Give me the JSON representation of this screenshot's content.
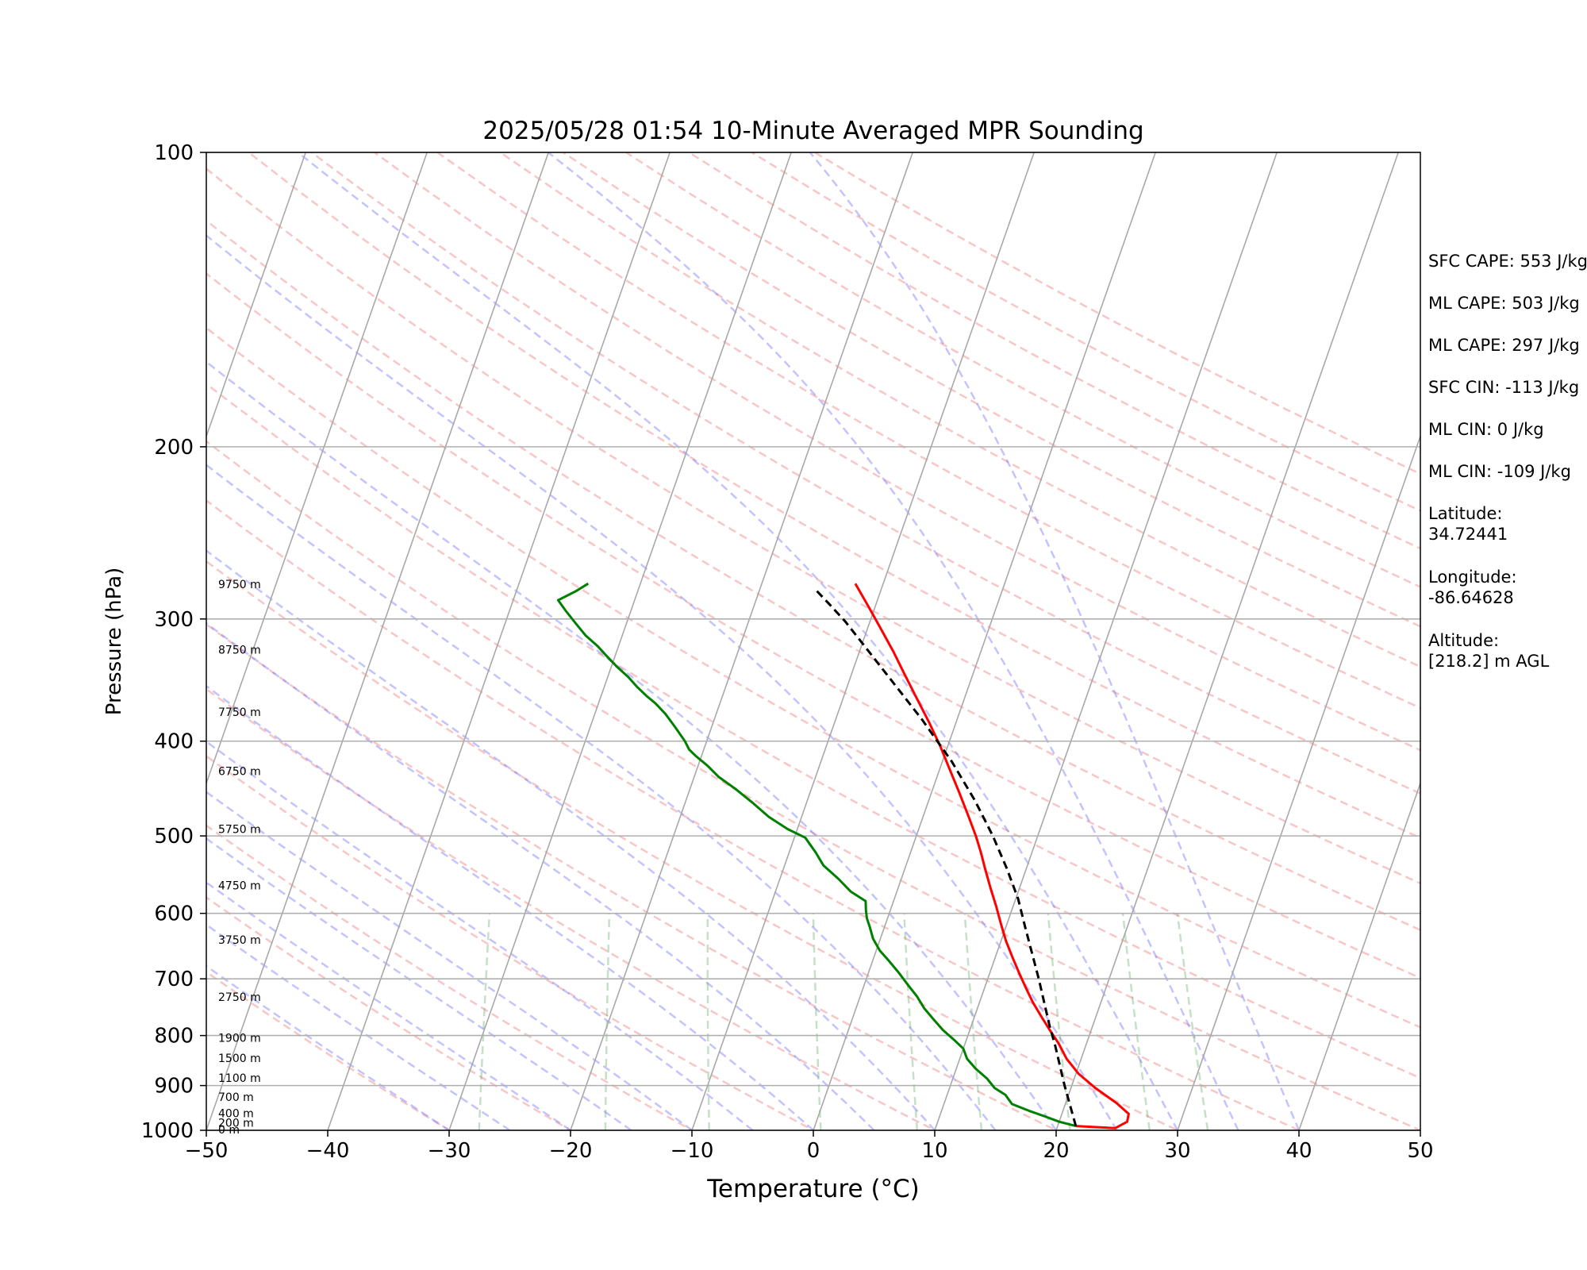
{
  "chart_data": {
    "type": "line",
    "title": "2025/05/28 01:54 10-Minute Averaged MPR Sounding",
    "xlabel": "Temperature (°C)",
    "ylabel": "Pressure (hPa)",
    "xlim": [
      -50,
      50
    ],
    "ylim": [
      1000,
      100
    ],
    "y_scale": "log",
    "skew": "skew-T",
    "xticks": [
      -50,
      -40,
      -30,
      -20,
      -10,
      0,
      10,
      20,
      30,
      40,
      50
    ],
    "xtick_labels": [
      "−50",
      "−40",
      "−30",
      "−20",
      "−10",
      "0",
      "10",
      "20",
      "30",
      "40",
      "50"
    ],
    "yticks": [
      100,
      200,
      300,
      400,
      500,
      600,
      700,
      800,
      900,
      1000
    ],
    "ytick_labels": [
      "100",
      "200",
      "300",
      "400",
      "500",
      "600",
      "700",
      "800",
      "900",
      "1000"
    ],
    "grid": "horizontal at pressure ticks",
    "height_labels": [
      {
        "p": 1000,
        "label": "0 m"
      },
      {
        "p": 984,
        "label": "200 m"
      },
      {
        "p": 962,
        "label": "400 m"
      },
      {
        "p": 926,
        "label": "700 m"
      },
      {
        "p": 886,
        "label": "1100 m"
      },
      {
        "p": 845,
        "label": "1500 m"
      },
      {
        "p": 806,
        "label": "1900 m"
      },
      {
        "p": 732,
        "label": "2750 m"
      },
      {
        "p": 640,
        "label": "3750 m"
      },
      {
        "p": 563,
        "label": "4750 m"
      },
      {
        "p": 493,
        "label": "5750 m"
      },
      {
        "p": 430,
        "label": "6750 m"
      },
      {
        "p": 374,
        "label": "7750 m"
      },
      {
        "p": 323,
        "label": "8750 m"
      },
      {
        "p": 277,
        "label": "9750 m"
      }
    ],
    "series": [
      {
        "color": "#ff0000",
        "points": [
          [
            21.5,
            990
          ],
          [
            24.8,
            995
          ],
          [
            25.6,
            980
          ],
          [
            25.5,
            962
          ],
          [
            24.2,
            938
          ],
          [
            22.0,
            905
          ],
          [
            20.2,
            875
          ],
          [
            18.8,
            845
          ],
          [
            17.7,
            815
          ],
          [
            16.6,
            790
          ],
          [
            15.5,
            765
          ],
          [
            14.4,
            740
          ],
          [
            13.4,
            715
          ],
          [
            12.4,
            690
          ],
          [
            11.4,
            665
          ],
          [
            10.4,
            640
          ],
          [
            9.5,
            615
          ],
          [
            8.6,
            590
          ],
          [
            7.6,
            565
          ],
          [
            6.6,
            540
          ],
          [
            5.8,
            520
          ],
          [
            4.9,
            500
          ],
          [
            3.6,
            475
          ],
          [
            2.2,
            450
          ],
          [
            0.8,
            427
          ],
          [
            -0.6,
            405
          ],
          [
            -2.2,
            383
          ],
          [
            -3.9,
            362
          ],
          [
            -5.6,
            342
          ],
          [
            -7.2,
            324
          ],
          [
            -9.0,
            306
          ],
          [
            -10.7,
            290
          ],
          [
            -12.3,
            276
          ]
        ]
      },
      {
        "color": "#008000",
        "points": [
          [
            21.5,
            990
          ],
          [
            20.0,
            980
          ],
          [
            18.7,
            968
          ],
          [
            17.2,
            955
          ],
          [
            15.6,
            940
          ],
          [
            14.8,
            920
          ],
          [
            13.7,
            905
          ],
          [
            12.8,
            885
          ],
          [
            11.6,
            865
          ],
          [
            10.6,
            845
          ],
          [
            10.0,
            825
          ],
          [
            9.1,
            810
          ],
          [
            7.8,
            790
          ],
          [
            6.7,
            770
          ],
          [
            5.6,
            750
          ],
          [
            4.7,
            730
          ],
          [
            3.6,
            710
          ],
          [
            2.5,
            690
          ],
          [
            1.4,
            672
          ],
          [
            0.3,
            655
          ],
          [
            -0.6,
            637
          ],
          [
            -1.2,
            620
          ],
          [
            -1.7,
            607
          ],
          [
            -2.0,
            596
          ],
          [
            -2.3,
            583
          ],
          [
            -3.8,
            570
          ],
          [
            -5.2,
            553
          ],
          [
            -6.8,
            536
          ],
          [
            -7.8,
            520
          ],
          [
            -9.1,
            502
          ],
          [
            -10.8,
            492
          ],
          [
            -12.7,
            478
          ],
          [
            -14.5,
            462
          ],
          [
            -16.2,
            448
          ],
          [
            -18.0,
            435
          ],
          [
            -19.2,
            424
          ],
          [
            -20.5,
            414
          ],
          [
            -21.2,
            408
          ],
          [
            -21.8,
            400
          ],
          [
            -23.0,
            387
          ],
          [
            -24.2,
            375
          ],
          [
            -25.3,
            366
          ],
          [
            -26.2,
            360
          ],
          [
            -27.3,
            352
          ],
          [
            -28.3,
            344
          ],
          [
            -29.5,
            336
          ],
          [
            -30.6,
            328
          ],
          [
            -31.7,
            320
          ],
          [
            -33.0,
            312
          ],
          [
            -34.2,
            303
          ],
          [
            -35.4,
            294
          ],
          [
            -36.3,
            287
          ],
          [
            -35.1,
            281
          ],
          [
            -34.3,
            276
          ]
        ]
      },
      {
        "color": "#000000",
        "dashed": true,
        "points": [
          [
            21.5,
            990
          ],
          [
            19.4,
            900
          ],
          [
            17.5,
            820
          ],
          [
            16.4,
            780
          ],
          [
            14.2,
            700
          ],
          [
            11.6,
            620
          ],
          [
            10.2,
            580
          ],
          [
            8.4,
            540
          ],
          [
            6.3,
            500
          ],
          [
            3.8,
            460
          ],
          [
            0.8,
            420
          ],
          [
            -2.9,
            380
          ],
          [
            -7.3,
            340
          ],
          [
            -12.0,
            302
          ],
          [
            -13.8,
            290
          ],
          [
            -15.4,
            280
          ]
        ]
      }
    ]
  },
  "panel": {
    "sfc_cape": "SFC CAPE: 553 J/kg",
    "ml_cape_1": "ML CAPE: 503 J/kg",
    "ml_cape_2": "ML CAPE: 297 J/kg",
    "sfc_cin": "SFC CIN: -113 J/kg",
    "ml_cin_1": "ML CIN: 0 J/kg",
    "ml_cin_2": "ML CIN: -109 J/kg",
    "latitude_label": "Latitude:",
    "latitude_value": "34.72441",
    "longitude_label": "Longitude:",
    "longitude_value": "-86.64628",
    "altitude_label": "Altitude:",
    "altitude_value": "[218.2] m AGL"
  }
}
